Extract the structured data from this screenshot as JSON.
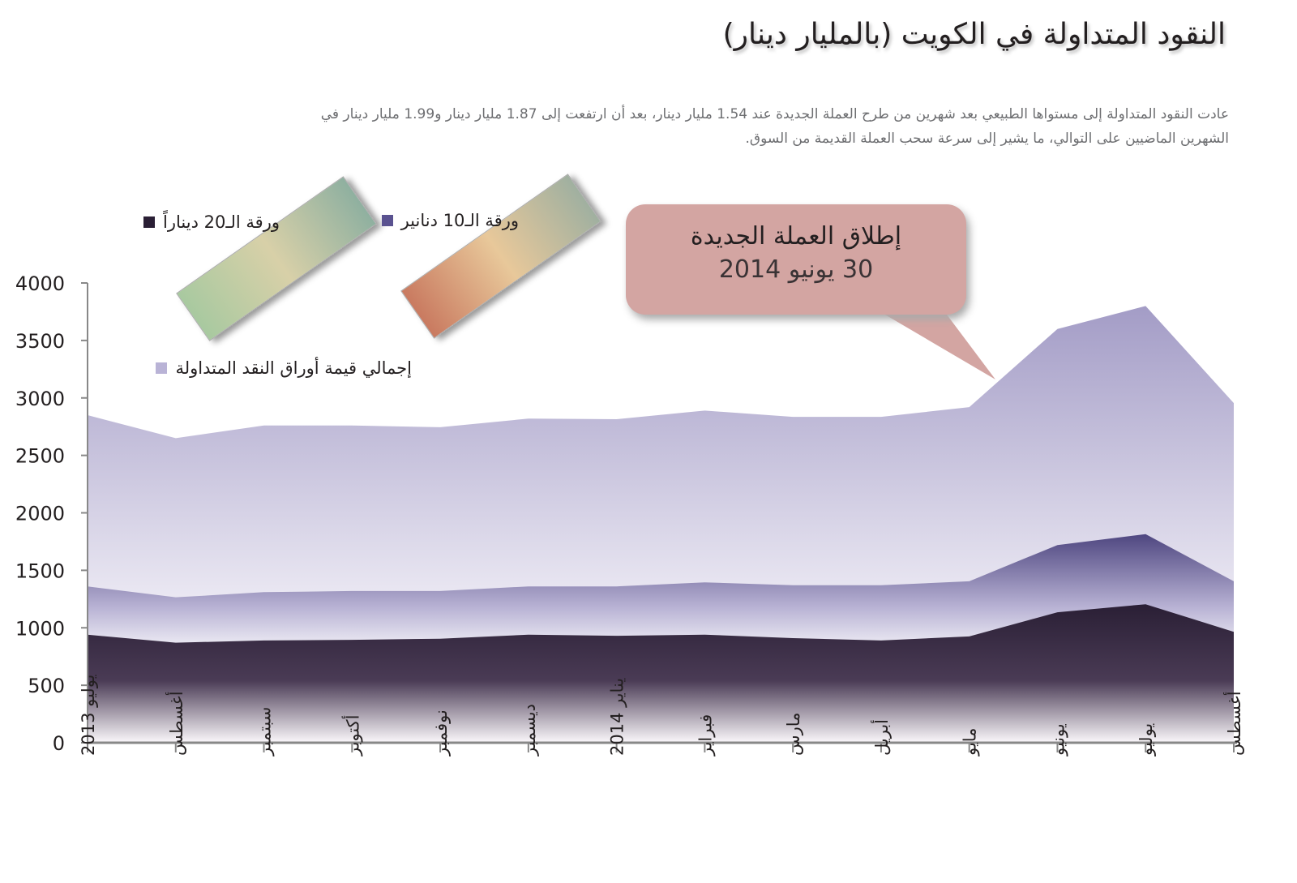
{
  "title": "النقود المتداولة في الكويت (بالمليار دينار)",
  "subtitle": "عادت النقود المتداولة إلى مستواها الطبيعي بعد شهرين من طرح العملة الجديدة عند 1.54 مليار دينار، بعد أن ارتفعت إلى 1.87 مليار دينار و1.99 مليار دينار في الشهرين الماضيين على التوالي، ما يشير إلى سرعة سحب العملة القديمة من السوق.",
  "callout": {
    "line1": "إطلاق العملة الجديدة",
    "line2": "30 يونيو 2014"
  },
  "colors": {
    "total": "#a9a2c9",
    "ten": "#4e4680",
    "twenty": "#2a1f35",
    "callout": "#d3a5a2"
  },
  "chart_data": {
    "type": "area",
    "title": "النقود المتداولة في الكويت (بالمليار دينار)",
    "categories": [
      "يوليو 2013",
      "أغسطس",
      "سبتمبر",
      "أكتوبر",
      "نوفمبر",
      "ديسمبر",
      "يناير 2014",
      "فبراير",
      "مارس",
      "أبريل",
      "مايو",
      "يونيو",
      "يوليو",
      "أغسطس"
    ],
    "yticks": [
      0,
      500,
      1000,
      1500,
      2000,
      2500,
      3000,
      3500,
      4000
    ],
    "ylim": [
      0,
      4000
    ],
    "legend": "top-left",
    "series": [
      {
        "name": "إجمالي قيمة أوراق النقد المتداولة",
        "values": [
          2850,
          2650,
          2760,
          2760,
          2745,
          2820,
          2815,
          2890,
          2835,
          2835,
          2920,
          3600,
          3800,
          2955
        ]
      },
      {
        "name": "ورقة الـ10 دنانير",
        "values": [
          1360,
          1265,
          1310,
          1320,
          1320,
          1360,
          1360,
          1395,
          1370,
          1370,
          1405,
          1720,
          1815,
          1405
        ]
      },
      {
        "name": "ورقة الـ20 ديناراً",
        "values": [
          940,
          870,
          890,
          895,
          905,
          940,
          930,
          940,
          910,
          890,
          925,
          1135,
          1205,
          965
        ]
      }
    ]
  }
}
